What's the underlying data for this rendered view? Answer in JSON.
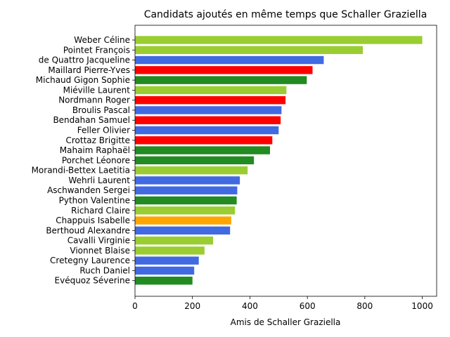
{
  "chart_data": {
    "type": "bar",
    "orientation": "horizontal",
    "title": "Candidats ajoutés en même temps que Schaller Graziella",
    "xlabel": "Amis de Schaller Graziella",
    "ylabel": "",
    "xlim": [
      0,
      1050
    ],
    "xticks": [
      0,
      200,
      400,
      600,
      800,
      1000
    ],
    "grid": false,
    "categories": [
      "Weber Céline",
      "Pointet François",
      "de Quattro Jacqueline",
      "Maillard Pierre-Yves",
      "Michaud Gigon Sophie",
      "Miéville Laurent",
      "Nordmann Roger",
      "Broulis Pascal",
      "Bendahan Samuel",
      "Feller Olivier",
      "Crottaz Brigitte",
      "Mahaim Raphaël",
      "Porchet Léonore",
      "Morandi-Bettex Laetitia",
      "Wehrli Laurent",
      "Aschwanden Sergei",
      "Python Valentine",
      "Richard Claire",
      "Chappuis Isabelle",
      "Berthoud Alexandre",
      "Cavalli Virginie",
      "Vionnet Blaise",
      "Cretegny Laurence",
      "Ruch Daniel",
      "Evéquoz Séverine"
    ],
    "values": [
      1000,
      793,
      657,
      618,
      598,
      527,
      524,
      510,
      507,
      500,
      478,
      470,
      414,
      392,
      365,
      356,
      354,
      348,
      335,
      331,
      272,
      242,
      222,
      206,
      200
    ],
    "colors": [
      "#9acd32",
      "#9acd32",
      "#4169e1",
      "#ff0000",
      "#228b22",
      "#9acd32",
      "#ff0000",
      "#4169e1",
      "#ff0000",
      "#4169e1",
      "#ff0000",
      "#228b22",
      "#228b22",
      "#9acd32",
      "#4169e1",
      "#4169e1",
      "#228b22",
      "#9acd32",
      "#ffa500",
      "#4169e1",
      "#9acd32",
      "#9acd32",
      "#4169e1",
      "#4169e1",
      "#228b22"
    ]
  }
}
